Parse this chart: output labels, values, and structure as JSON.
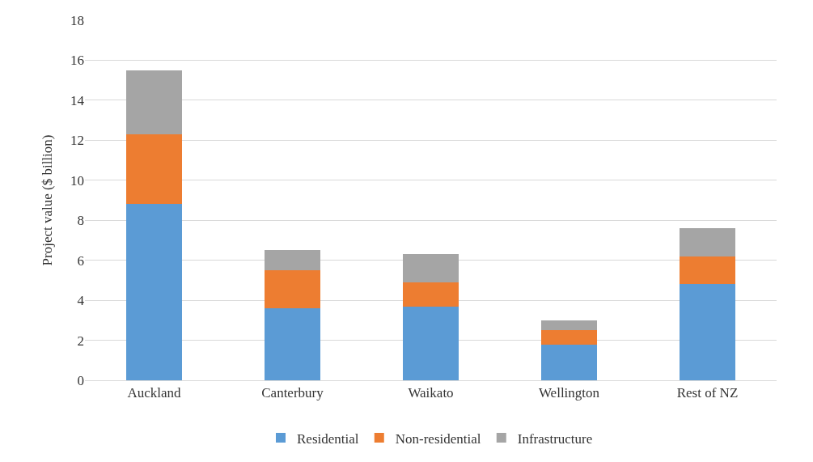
{
  "chart_data": {
    "type": "bar",
    "ylabel": "Project value ($ billion)",
    "categories": [
      "Auckland",
      "Canterbury",
      "Waikato",
      "Wellington",
      "Rest of NZ"
    ],
    "series": [
      {
        "name": "Residential",
        "color": "#5b9bd5",
        "values": [
          8.8,
          3.6,
          3.7,
          1.8,
          4.8
        ]
      },
      {
        "name": "Non-residential",
        "color": "#ed7d31",
        "values": [
          3.5,
          1.9,
          1.2,
          0.7,
          1.4
        ]
      },
      {
        "name": "Infrastructure",
        "color": "#a5a5a5",
        "values": [
          3.2,
          1.0,
          1.4,
          0.5,
          1.4
        ]
      }
    ],
    "stacked": true,
    "ylim": [
      0,
      18
    ],
    "yticks": [
      0,
      2,
      4,
      6,
      8,
      10,
      12,
      14,
      16,
      18
    ],
    "grid": "y",
    "legend": "bottom"
  }
}
